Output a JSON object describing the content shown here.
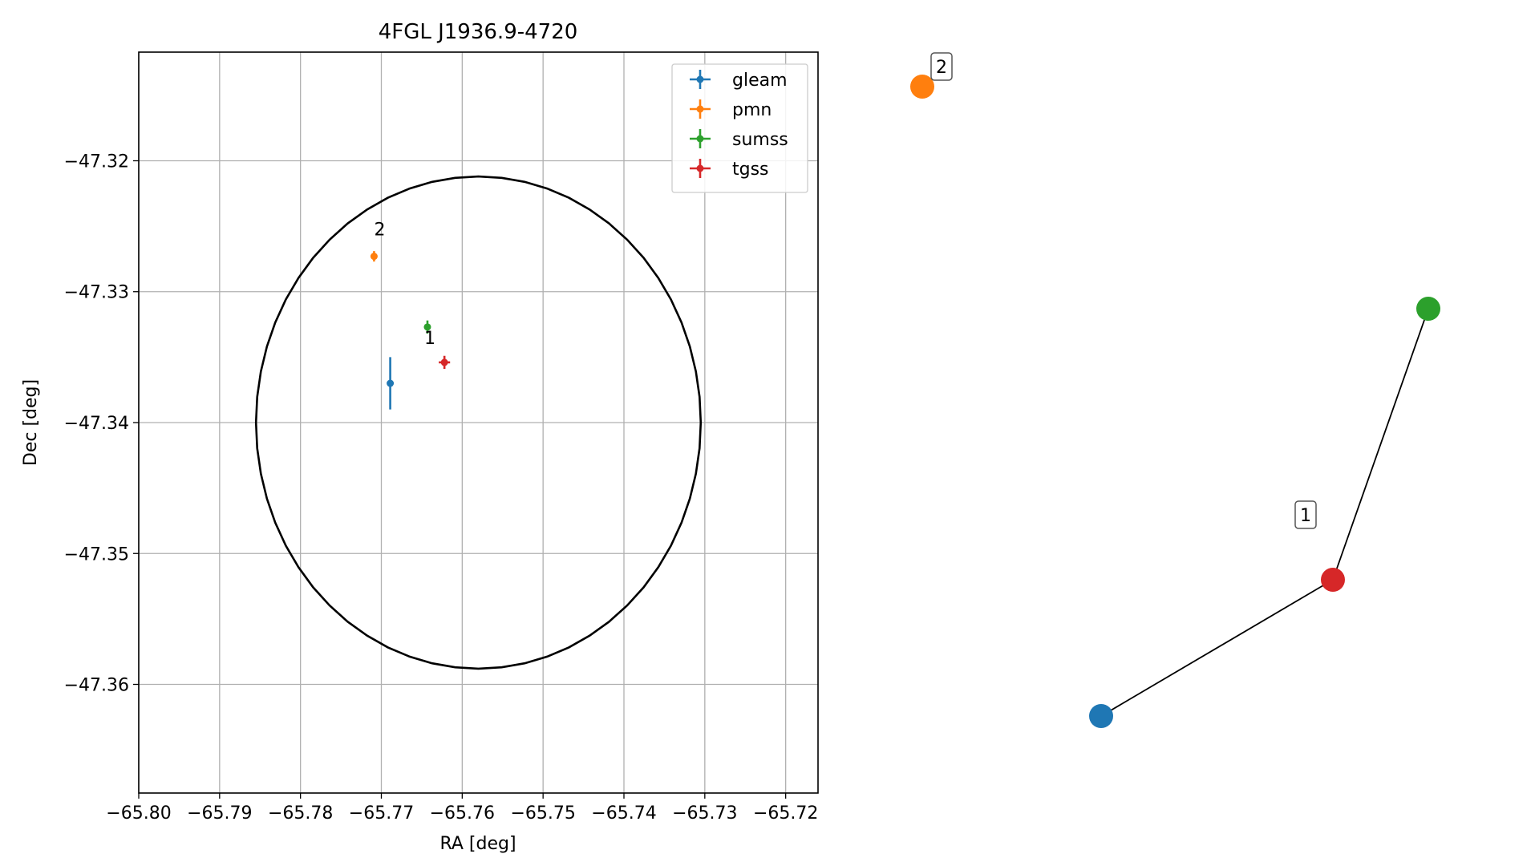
{
  "chart_data": [
    {
      "type": "scatter",
      "title": "4FGL J1936.9-4720",
      "xlabel": "RA [deg]",
      "ylabel": "Dec [deg]",
      "xlim": [
        -65.8,
        -65.716
      ],
      "ylim": [
        -47.3683,
        -47.3117
      ],
      "xticks": [
        {
          "value": -65.8,
          "label": "−65.80"
        },
        {
          "value": -65.79,
          "label": "−65.79"
        },
        {
          "value": -65.78,
          "label": "−65.78"
        },
        {
          "value": -65.77,
          "label": "−65.77"
        },
        {
          "value": -65.76,
          "label": "−65.76"
        },
        {
          "value": -65.75,
          "label": "−65.75"
        },
        {
          "value": -65.74,
          "label": "−65.74"
        },
        {
          "value": -65.73,
          "label": "−65.73"
        },
        {
          "value": -65.72,
          "label": "−65.72"
        }
      ],
      "yticks": [
        {
          "value": -47.32,
          "label": "−47.32"
        },
        {
          "value": -47.33,
          "label": "−47.33"
        },
        {
          "value": -47.34,
          "label": "−47.34"
        },
        {
          "value": -47.35,
          "label": "−47.35"
        },
        {
          "value": -47.36,
          "label": "−47.36"
        }
      ],
      "grid": true,
      "legend_position": "top-right",
      "series": [
        {
          "name": "gleam",
          "color": "#1f77b4",
          "points": [
            {
              "x": -65.7689,
              "y": -47.337,
              "xerr": 0.0001,
              "yerr": 0.002
            }
          ]
        },
        {
          "name": "pmn",
          "color": "#ff7f0e",
          "points": [
            {
              "x": -65.7709,
              "y": -47.3273,
              "xerr": 0.0004,
              "yerr": 0.0004
            }
          ]
        },
        {
          "name": "sumss",
          "color": "#2ca02c",
          "points": [
            {
              "x": -65.7643,
              "y": -47.3327,
              "xerr": 0.0004,
              "yerr": 0.0005
            }
          ]
        },
        {
          "name": "tgss",
          "color": "#d62728",
          "points": [
            {
              "x": -65.7622,
              "y": -47.3354,
              "xerr": 0.0007,
              "yerr": 0.0005
            }
          ]
        }
      ],
      "ellipse": {
        "center": [
          -65.758,
          -47.34
        ],
        "semi_x": 0.0275,
        "semi_y": 0.0188,
        "color": "#000000"
      },
      "annotations": [
        {
          "text": "1",
          "x": -65.764,
          "y": -47.334
        },
        {
          "text": "2",
          "x": -65.7702,
          "y": -47.3257
        }
      ]
    },
    {
      "type": "network",
      "nodes": [
        {
          "id": "gleam",
          "color": "#1f77b4"
        },
        {
          "id": "pmn",
          "color": "#ff7f0e"
        },
        {
          "id": "sumss",
          "color": "#2ca02c"
        },
        {
          "id": "tgss",
          "color": "#d62728"
        }
      ],
      "edges": [
        [
          "gleam",
          "tgss"
        ],
        [
          "tgss",
          "sumss"
        ]
      ],
      "group_labels": [
        "1",
        "2"
      ]
    }
  ]
}
